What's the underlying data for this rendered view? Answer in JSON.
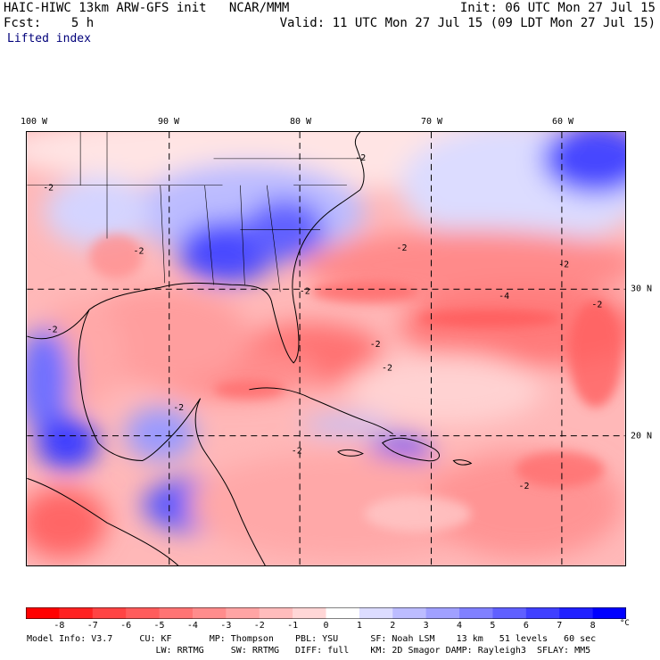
{
  "header": {
    "model_line": "HAIC-HIWC 13km ARW-GFS init   NCAR/MMM",
    "fcst_line": "Fcst:    5 h",
    "init_line": "Init: 06 UTC Mon 27 Jul 15",
    "valid_line": "Valid: 11 UTC Mon 27 Jul 15 (09 LDT Mon 27 Jul 15)",
    "field_name": "Lifted index"
  },
  "map": {
    "projection_extent": {
      "lon_min": -100,
      "lon_max": -55,
      "lat_min": 12.5,
      "lat_max": 38.5
    },
    "lon_labels": [
      {
        "lon": -100,
        "text": "100 W"
      },
      {
        "lon": -90,
        "text": "90 W"
      },
      {
        "lon": -80,
        "text": "80 W"
      },
      {
        "lon": -70,
        "text": "70 W"
      },
      {
        "lon": -60,
        "text": "60 W"
      }
    ],
    "lat_labels": [
      {
        "lat": 30,
        "text": "30 N"
      },
      {
        "lat": 20,
        "text": "20 N"
      }
    ],
    "contour_labels": [
      {
        "text": "-2",
        "lon": -98.8,
        "lat": 35.0
      },
      {
        "text": "-2",
        "lon": -92.0,
        "lat": 31.2
      },
      {
        "text": "-2",
        "lon": -79.5,
        "lat": 28.8
      },
      {
        "text": "-2",
        "lon": -72.2,
        "lat": 31.4
      },
      {
        "text": "-2",
        "lon": -73.3,
        "lat": 24.2
      },
      {
        "text": "-2",
        "lon": -89.0,
        "lat": 21.8
      },
      {
        "text": "-2",
        "lon": -80.1,
        "lat": 19.2
      },
      {
        "text": "-2",
        "lon": -74.2,
        "lat": 25.6
      },
      {
        "text": "-2",
        "lon": -63.0,
        "lat": 17.1
      },
      {
        "text": "-2",
        "lon": -60.0,
        "lat": 30.4
      },
      {
        "text": "-2",
        "lon": -75.3,
        "lat": 36.8
      },
      {
        "text": "-4",
        "lon": -64.5,
        "lat": 28.5
      },
      {
        "text": "-2",
        "lon": -57.5,
        "lat": 28.0
      },
      {
        "text": "-2",
        "lon": -98.5,
        "lat": 26.5
      }
    ],
    "colors": {
      "neg8": "#ff1010",
      "neg7": "#ff3030",
      "neg6": "#ff5050",
      "neg5": "#ff6a6a",
      "neg4": "#ff8787",
      "neg3": "#ffa3a3",
      "neg2": "#ffc0c0",
      "neg1": "#ffdede",
      "zero": "#ffffff",
      "pos1": "#e2e2ff",
      "pos2": "#c4c4ff",
      "pos3": "#a6a6ff",
      "pos4": "#8888ff",
      "pos5": "#6a6aff",
      "pos6": "#4c4cff",
      "pos7": "#2e2eff",
      "pos8": "#0000e6"
    }
  },
  "colorbar": {
    "labels": [
      "-8",
      "-7",
      "-6",
      "-5",
      "-4",
      "-3",
      "-2",
      "-1",
      "0",
      "1",
      "2",
      "3",
      "4",
      "5",
      "6",
      "7",
      "8"
    ],
    "unit": "°C",
    "colors": [
      "#ff0000",
      "#ff2222",
      "#ff4444",
      "#ff5c5c",
      "#ff7474",
      "#ff8c8c",
      "#ffa4a4",
      "#ffbcbc",
      "#ffd6d6",
      "#ffffff",
      "#dcdcff",
      "#bcbcff",
      "#a0a0ff",
      "#8080ff",
      "#6060ff",
      "#4040ff",
      "#2020ff",
      "#0000ff"
    ]
  },
  "footer": {
    "line1": "Model Info: V3.7     CU: KF       MP: Thompson    PBL: YSU      SF: Noah LSM    13 km   51 levels   60 sec",
    "line2": "                        LW: RRTMG     SW: RRTMG   DIFF: full    KM: 2D Smagor DAMP: Rayleigh3  SFLAY: MM5"
  }
}
